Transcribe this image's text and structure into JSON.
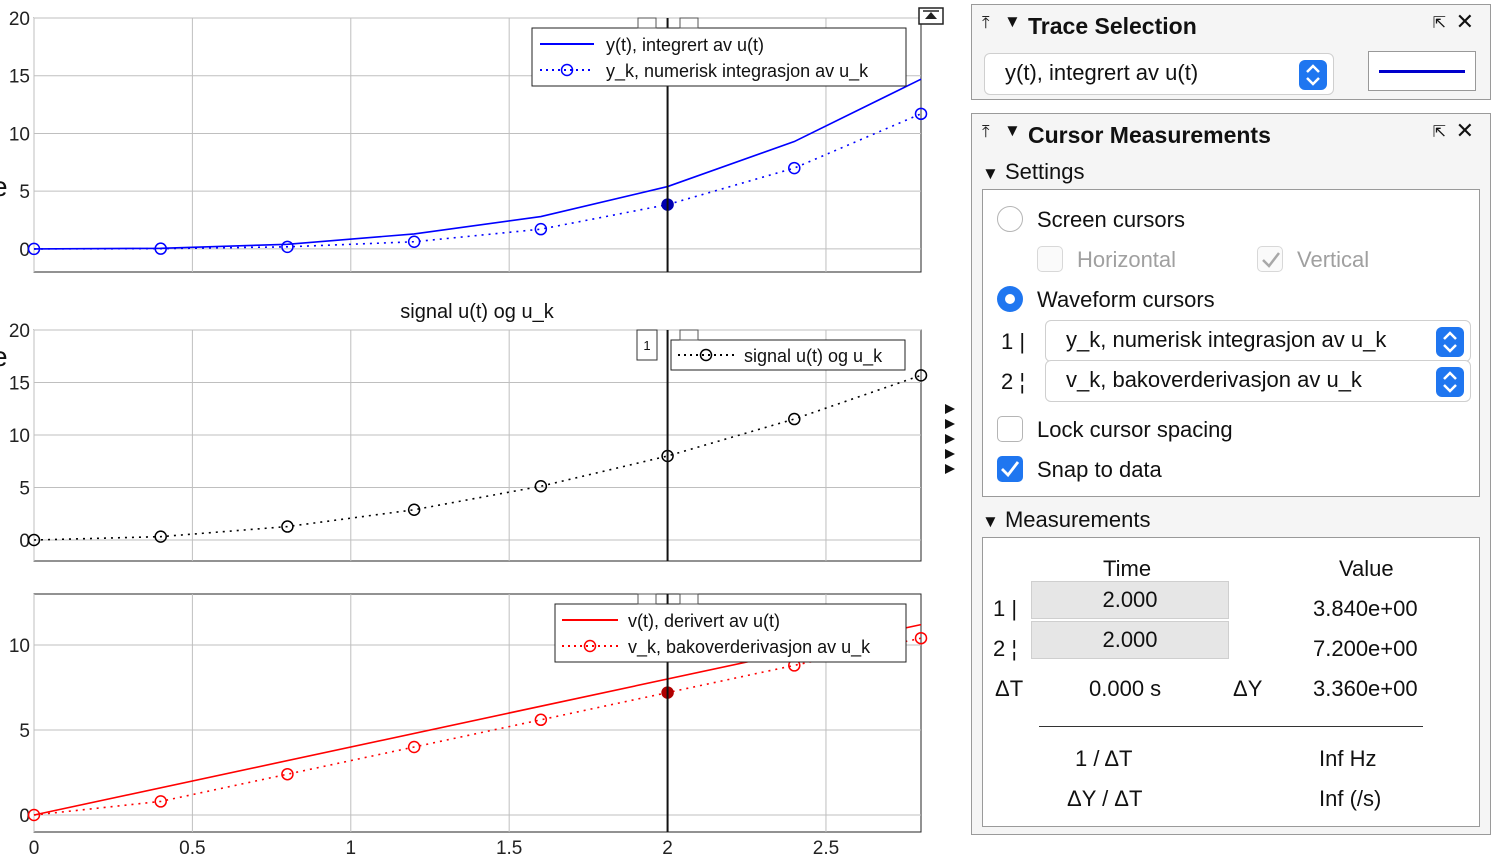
{
  "plot1": {
    "legend": [
      "y(t), integrert av u(t)",
      "y_k, numerisk integrasjon av u_k"
    ],
    "y_ticks": [
      "20",
      "15",
      "10",
      "5",
      "0"
    ]
  },
  "plot2": {
    "title": "signal u(t) og u_k",
    "legend": [
      "signal u(t) og u_k"
    ],
    "cursor_tag": "1",
    "y_ticks": [
      "20",
      "15",
      "10",
      "5",
      "0"
    ]
  },
  "plot3": {
    "legend": [
      "v(t), derivert av u(t)",
      "v_k, bakoverderivasjon av u_k"
    ],
    "y_ticks": [
      "10",
      "5",
      "0"
    ]
  },
  "x_ticks": [
    "0",
    "0.5",
    "1",
    "1.5",
    "2",
    "2.5"
  ],
  "chart_data": [
    {
      "type": "line",
      "xlim": [
        0,
        2.8
      ],
      "ylim": [
        -2,
        20
      ],
      "series": [
        {
          "name": "y(t), integrert av u(t)",
          "color": "#0000ff",
          "style": "solid",
          "x": [
            0,
            0.4,
            0.8,
            1.2,
            1.6,
            2.0,
            2.4,
            2.8
          ],
          "y": [
            0,
            0.05,
            0.4,
            1.3,
            2.8,
            5.4,
            9.3,
            14.7
          ]
        },
        {
          "name": "y_k, numerisk integrasjon av u_k",
          "color": "#0000ff",
          "style": "dotted",
          "marker": "circle",
          "x": [
            0,
            0.4,
            0.8,
            1.2,
            1.6,
            2.0,
            2.4,
            2.8
          ],
          "y": [
            0,
            0.02,
            0.18,
            0.62,
            1.71,
            3.84,
            7.0,
            11.7
          ]
        }
      ]
    },
    {
      "type": "line",
      "title": "signal u(t) og u_k",
      "xlim": [
        0,
        2.8
      ],
      "ylim": [
        -2,
        20
      ],
      "series": [
        {
          "name": "signal u(t) og u_k",
          "color": "#000000",
          "style": "dotted",
          "marker": "circle",
          "x": [
            0,
            0.4,
            0.8,
            1.2,
            1.6,
            2.0,
            2.4,
            2.8
          ],
          "y": [
            0,
            0.32,
            1.28,
            2.88,
            5.12,
            8.0,
            11.52,
            15.68
          ]
        }
      ]
    },
    {
      "type": "line",
      "xlim": [
        0,
        2.8
      ],
      "ylim": [
        -1,
        13
      ],
      "series": [
        {
          "name": "v(t), derivert av u(t)",
          "color": "#ff0000",
          "style": "solid",
          "x": [
            0,
            2.8
          ],
          "y": [
            0,
            11.2
          ]
        },
        {
          "name": "v_k, bakoverderivasjon av u_k",
          "color": "#ff0000",
          "style": "dotted",
          "marker": "circle",
          "x": [
            0,
            0.4,
            0.8,
            1.2,
            1.6,
            2.0,
            2.4,
            2.8
          ],
          "y": [
            0,
            0.8,
            2.4,
            4.0,
            5.6,
            7.2,
            8.8,
            10.4
          ]
        }
      ]
    }
  ],
  "cursor_x": 2.0,
  "trace_selection": {
    "title": "Trace Selection",
    "selected": "y(t), integrert av u(t)",
    "line_color": "#0000cc"
  },
  "cursor_measurements": {
    "title": "Cursor Measurements",
    "settings_label": "Settings",
    "screen_cursors": "Screen cursors",
    "horizontal": "Horizontal",
    "vertical": "Vertical",
    "waveform_cursors": "Waveform cursors",
    "cursor1_label": "1 |",
    "cursor1_trace": "y_k, numerisk integrasjon av u_k",
    "cursor2_label": "2 ¦",
    "cursor2_trace": "v_k, bakoverderivasjon av u_k",
    "lock_spacing": "Lock cursor spacing",
    "snap": "Snap to data",
    "measurements_label": "Measurements",
    "time_header": "Time",
    "value_header": "Value",
    "row1_label": "1 |",
    "row1_time": "2.000",
    "row1_value": "3.840e+00",
    "row2_label": "2 ¦",
    "row2_time": "2.000",
    "row2_value": "7.200e+00",
    "dt_label": "ΔT",
    "dt_value": "0.000 s",
    "dy_label": "ΔY",
    "dy_value": "3.360e+00",
    "inv_dt_label": "1 / ΔT",
    "inv_dt_value": "Inf Hz",
    "dydt_label": "ΔY / ΔT",
    "dydt_value": "Inf (/s)"
  }
}
